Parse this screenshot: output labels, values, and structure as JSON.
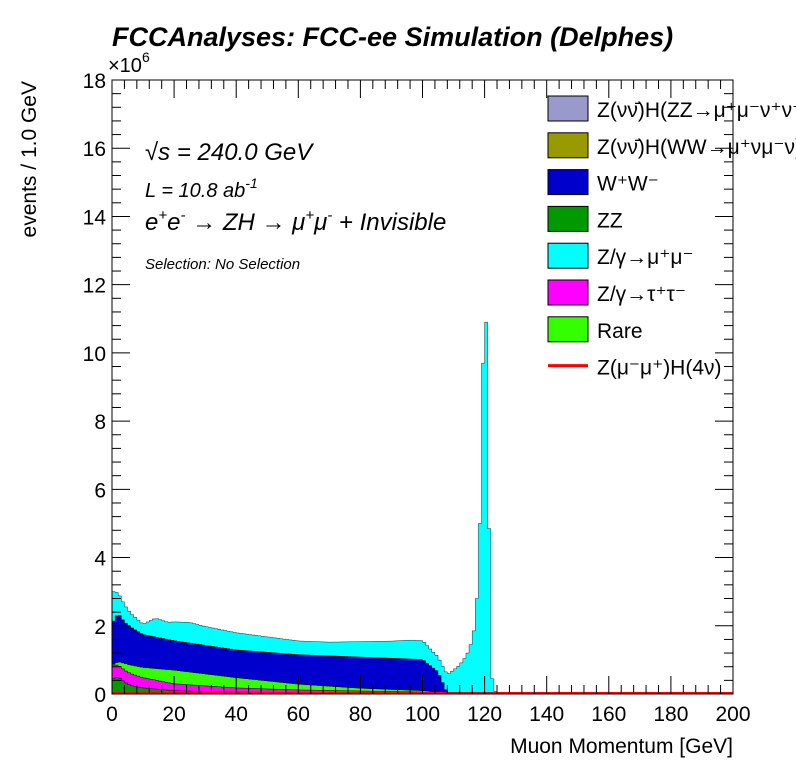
{
  "chart_data": {
    "type": "area",
    "title": "FCCAnalyses: FCC-ee Simulation (Delphes)",
    "xlabel": "Muon Momentum [GeV]",
    "ylabel": "events / 1.0 GeV",
    "y_exponent_label": "×10",
    "y_exponent_power": "6",
    "xlim": [
      0,
      200
    ],
    "ylim": [
      0,
      18
    ],
    "y_unit": "millions of events per 1.0 GeV",
    "x_ticks": [
      0,
      20,
      40,
      60,
      80,
      100,
      120,
      140,
      160,
      180,
      200
    ],
    "y_ticks": [
      0,
      2,
      4,
      6,
      8,
      10,
      12,
      14,
      16,
      18
    ],
    "annotations": {
      "sqrt_s_symbol": "√s",
      "sqrt_s_value": " = 240.0 GeV",
      "luminosity_base": "L = 10.8 ab",
      "luminosity_exp": "-1",
      "process_prefix": "e",
      "process_body": "ZH",
      "process_suffix": "+ Invisible",
      "selection": "Selection: No Selection"
    },
    "legend_placement": "top-right",
    "legend": [
      {
        "label": "Z(νν̄)H(ZZ→μ⁺μ⁻ν⁺ν⁻)",
        "color": "#9999cc",
        "style": "fill"
      },
      {
        "label": "Z(νν̄)H(WW→μ⁺νμ⁻ν)",
        "color": "#999900",
        "style": "fill"
      },
      {
        "label": "W⁺W⁻",
        "color": "#0000cc",
        "style": "fill"
      },
      {
        "label": "ZZ",
        "color": "#009900",
        "style": "fill"
      },
      {
        "label": "Z/γ→μ⁺μ⁻",
        "color": "#00ffff",
        "style": "fill"
      },
      {
        "label": "Z/γ→τ⁺τ⁻",
        "color": "#ff00ff",
        "style": "fill"
      },
      {
        "label": "Rare",
        "color": "#33ff00",
        "style": "fill"
      },
      {
        "label": "Z(μ⁻μ⁺)H(4ν)",
        "color": "#ff0000",
        "style": "line"
      }
    ],
    "stacked_series_bottom_to_top": [
      {
        "legend_index": 3,
        "color": "#009900",
        "x": [
          0,
          2,
          4,
          6,
          10,
          20,
          40,
          60,
          80,
          100,
          105,
          110,
          125
        ],
        "y": [
          0.45,
          0.5,
          0.35,
          0.25,
          0.18,
          0.1,
          0.06,
          0.04,
          0.03,
          0.02,
          0.01,
          0.0,
          0.0
        ]
      },
      {
        "legend_index": 5,
        "color": "#ff00ff",
        "x": [
          0,
          2,
          4,
          6,
          10,
          20,
          40,
          60,
          80,
          100,
          105,
          110,
          125
        ],
        "y": [
          0.4,
          0.35,
          0.35,
          0.35,
          0.3,
          0.2,
          0.12,
          0.08,
          0.06,
          0.04,
          0.02,
          0.0,
          0.0
        ]
      },
      {
        "legend_index": 6,
        "color": "#33ff00",
        "x": [
          0,
          2,
          4,
          6,
          10,
          20,
          40,
          60,
          80,
          100,
          105,
          110,
          125
        ],
        "y": [
          0.0,
          0.1,
          0.2,
          0.25,
          0.3,
          0.4,
          0.3,
          0.17,
          0.08,
          0.04,
          0.02,
          0.0,
          0.0
        ]
      },
      {
        "legend_index": 2,
        "color": "#0000cc",
        "x": [
          0,
          2,
          4,
          6,
          10,
          20,
          40,
          60,
          80,
          100,
          105,
          108,
          112,
          125
        ],
        "y": [
          1.2,
          1.4,
          1.2,
          1.1,
          0.95,
          0.85,
          0.8,
          0.85,
          0.9,
          0.9,
          0.6,
          0.0,
          0.0,
          0.0
        ]
      },
      {
        "legend_index": 1,
        "color": "#999900",
        "x": [
          0,
          20,
          40,
          60,
          80,
          100,
          105,
          110,
          125
        ],
        "y": [
          0.01,
          0.01,
          0.01,
          0.01,
          0.01,
          0.01,
          0.0,
          0.0,
          0.0
        ]
      },
      {
        "legend_index": 0,
        "color": "#9999cc",
        "x": [
          0,
          20,
          40,
          60,
          80,
          100,
          105,
          110,
          125
        ],
        "y": [
          0.005,
          0.005,
          0.005,
          0.005,
          0.005,
          0.005,
          0.0,
          0.0,
          0.0
        ]
      },
      {
        "legend_index": 4,
        "color": "#00ffff",
        "x": [
          0,
          2,
          4,
          6,
          10,
          14,
          18,
          20,
          25,
          30,
          40,
          50,
          60,
          70,
          80,
          90,
          96,
          100,
          104,
          106,
          108,
          110,
          112,
          114,
          115,
          116,
          117,
          118,
          119,
          120,
          121,
          122,
          123,
          125
        ],
        "y": [
          0.95,
          0.6,
          0.5,
          0.4,
          0.3,
          0.55,
          0.5,
          0.55,
          0.6,
          0.55,
          0.5,
          0.45,
          0.4,
          0.4,
          0.45,
          0.5,
          0.55,
          0.55,
          0.45,
          0.45,
          0.55,
          0.7,
          0.85,
          1.1,
          1.3,
          1.6,
          2.1,
          3.5,
          6.5,
          12.9,
          8.9,
          0.8,
          0.1,
          0.0
        ]
      }
    ],
    "signal_line": {
      "legend_index": 7,
      "color": "#ff0000",
      "x": [
        0,
        200
      ],
      "y": [
        0.0,
        0.0
      ]
    }
  }
}
